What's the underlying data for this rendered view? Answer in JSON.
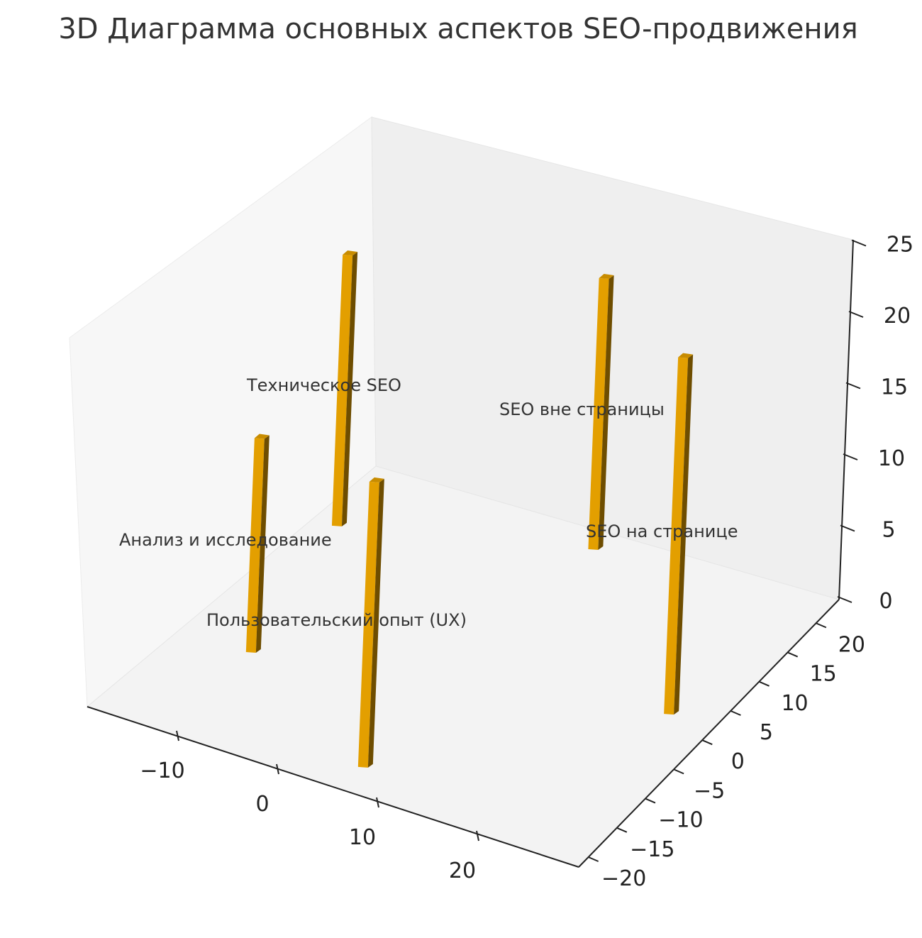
{
  "chart_data": {
    "type": "bar3d",
    "title": "3D Диаграмма основных аспектов SEO-продвижения",
    "xlabel": "",
    "ylabel": "",
    "zlabel": "",
    "x_ticks": [
      "−10",
      "0",
      "10",
      "20"
    ],
    "y_ticks": [
      "−20",
      "−15",
      "−10",
      "−5",
      "0",
      "5",
      "10",
      "15",
      "20"
    ],
    "z_ticks": [
      "0",
      "5",
      "10",
      "15",
      "20",
      "25"
    ],
    "xlim": [
      -19,
      30
    ],
    "ylim": [
      -21.7,
      24
    ],
    "zlim": [
      0,
      25
    ],
    "bar_color": "#E39F00",
    "bars": [
      {
        "label": "Техническое SEO",
        "x": -14,
        "y": 12,
        "z": 19
      },
      {
        "label": "SEO вне страницы",
        "x": 7,
        "y": 20,
        "z": 19
      },
      {
        "label": "Анализ и исследование",
        "x": -11,
        "y": -8,
        "z": 15
      },
      {
        "label": "SEO на странице",
        "x": 25,
        "y": 2,
        "z": 25
      },
      {
        "label": "Пользовательский опыт (UX)",
        "x": 6,
        "y": -18,
        "z": 20
      }
    ]
  }
}
